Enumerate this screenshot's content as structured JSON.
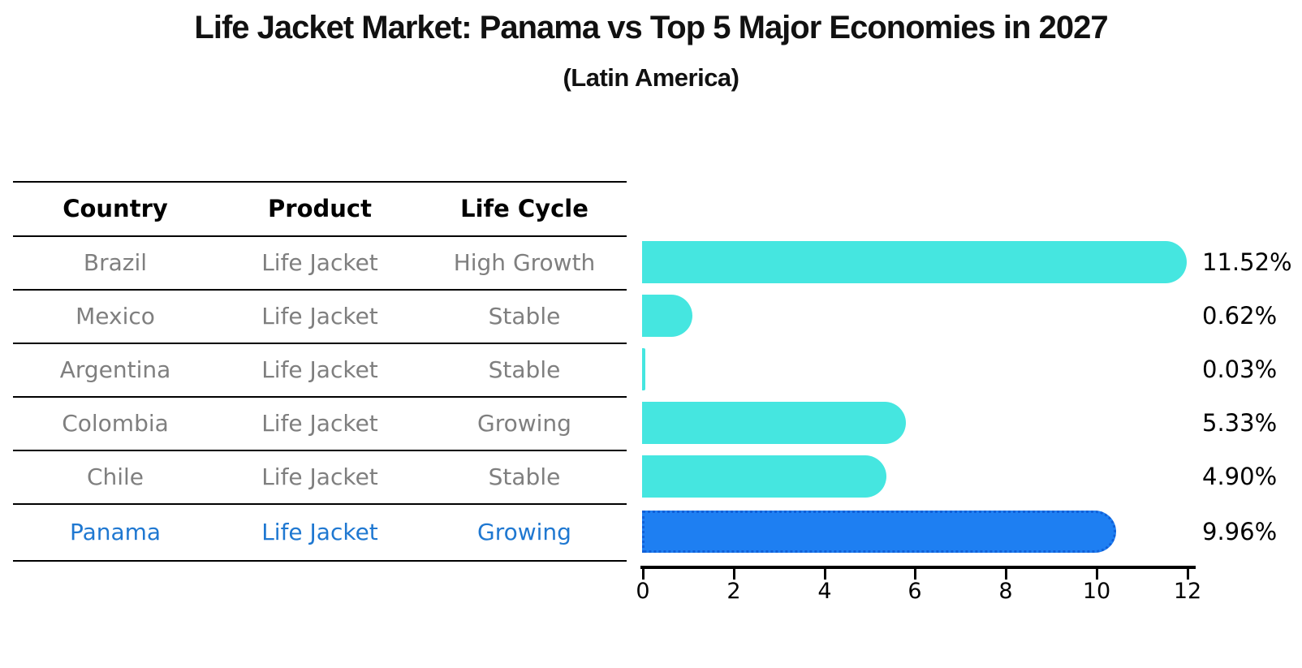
{
  "title": "Life Jacket Market: Panama vs Top 5 Major Economies in 2027",
  "subtitle": "(Latin America)",
  "table": {
    "headers": [
      "Country",
      "Product",
      "Life Cycle"
    ],
    "rows": [
      {
        "country": "Brazil",
        "product": "Life Jacket",
        "life_cycle": "High Growth",
        "highlight": false
      },
      {
        "country": "Mexico",
        "product": "Life Jacket",
        "life_cycle": "Stable",
        "highlight": false
      },
      {
        "country": "Argentina",
        "product": "Life Jacket",
        "life_cycle": "Stable",
        "highlight": false
      },
      {
        "country": "Colombia",
        "product": "Life Jacket",
        "life_cycle": "Growing",
        "highlight": false
      },
      {
        "country": "Chile",
        "product": "Life Jacket",
        "life_cycle": "Stable",
        "highlight": false
      },
      {
        "country": "Panama",
        "product": "Life Jacket",
        "life_cycle": "Growing",
        "highlight": true
      }
    ]
  },
  "chart_data": {
    "type": "bar",
    "orientation": "horizontal",
    "categories": [
      "Brazil",
      "Mexico",
      "Argentina",
      "Colombia",
      "Chile",
      "Panama"
    ],
    "values": [
      11.52,
      0.62,
      0.03,
      5.33,
      4.9,
      9.96
    ],
    "bar_labels": [
      "11.52%",
      "0.62%",
      "0.03%",
      "5.33%",
      "4.90%",
      "9.96%"
    ],
    "highlight_category": "Panama",
    "xticks": [
      "0",
      "2",
      "4",
      "6",
      "8",
      "10",
      "12"
    ],
    "xlim": [
      0,
      12
    ],
    "grid": false,
    "legend": false,
    "colors": {
      "bar": "#45e6e0",
      "highlight_bar": "#1e7ff2",
      "highlight_edge": "#1060d8",
      "highlight_text": "#1f78d1",
      "table_text": "#7f7f7f",
      "axis": "#000000"
    }
  }
}
